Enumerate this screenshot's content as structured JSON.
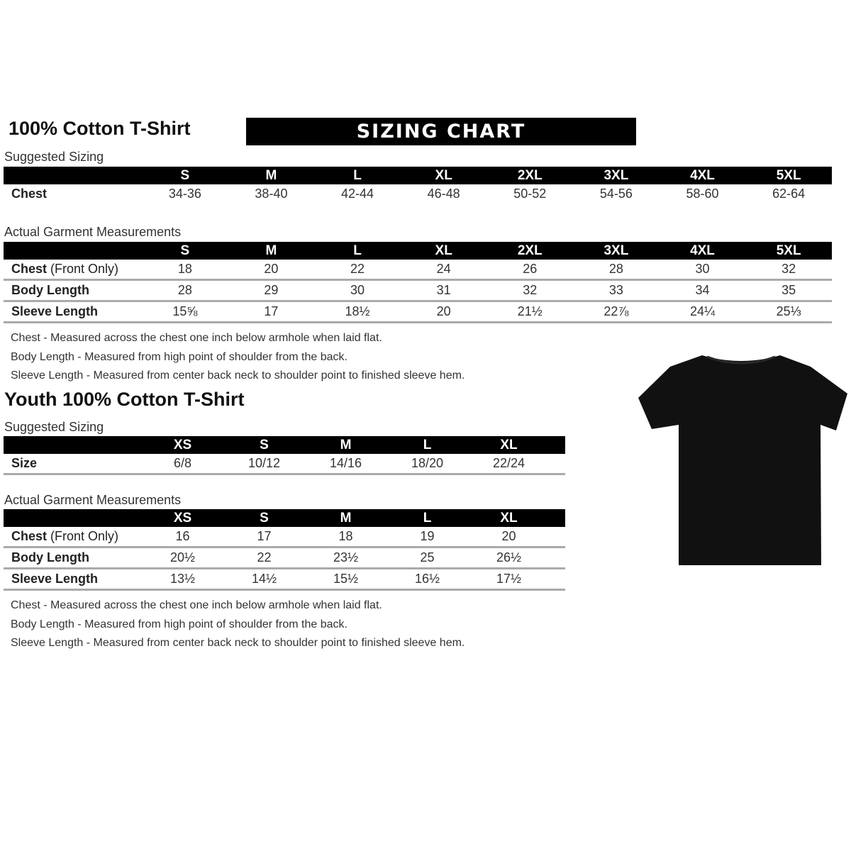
{
  "adult": {
    "title": "100% Cotton T-Shirt",
    "banner": "SIZING CHART",
    "suggested_label": "Suggested Sizing",
    "sizes": [
      "S",
      "M",
      "L",
      "XL",
      "2XL",
      "3XL",
      "4XL",
      "5XL"
    ],
    "chest_label": "Chest",
    "chest": [
      "34-36",
      "38-40",
      "42-44",
      "46-48",
      "50-52",
      "54-56",
      "58-60",
      "62-64"
    ],
    "actual_label": "Actual Garment Measurements",
    "rows": [
      {
        "label": "Chest",
        "label_suffix": " (Front Only)",
        "values": [
          "18",
          "20",
          "22",
          "24",
          "26",
          "28",
          "30",
          "32"
        ]
      },
      {
        "label": "Body Length",
        "label_suffix": "",
        "values": [
          "28",
          "29",
          "30",
          "31",
          "32",
          "33",
          "34",
          "35"
        ]
      },
      {
        "label": "Sleeve Length",
        "label_suffix": "",
        "values": [
          "15⅝",
          "17",
          "18½",
          "20",
          "21½",
          "22⅞",
          "24¼",
          "25⅓"
        ]
      }
    ],
    "notes": [
      "Chest - Measured across the chest one inch below armhole when laid flat.",
      "Body Length - Measured from high point of shoulder from the back.",
      "Sleeve Length - Measured from center back neck to shoulder point to finished sleeve hem."
    ]
  },
  "youth": {
    "title": "Youth 100% Cotton T-Shirt",
    "suggested_label": "Suggested Sizing",
    "sizes": [
      "XS",
      "S",
      "M",
      "L",
      "XL"
    ],
    "size_label": "Size",
    "size_values": [
      "6/8",
      "10/12",
      "14/16",
      "18/20",
      "22/24"
    ],
    "actual_label": "Actual Garment Measurements",
    "rows": [
      {
        "label": "Chest",
        "label_suffix": " (Front Only)",
        "values": [
          "16",
          "17",
          "18",
          "19",
          "20"
        ]
      },
      {
        "label": "Body Length",
        "label_suffix": "",
        "values": [
          "20½",
          "22",
          "23½",
          "25",
          "26½"
        ]
      },
      {
        "label": "Sleeve Length",
        "label_suffix": "",
        "values": [
          "13½",
          "14½",
          "15½",
          "16½",
          "17½"
        ]
      }
    ],
    "notes": [
      "Chest - Measured across the chest one inch below armhole when laid flat.",
      "Body Length - Measured from high point of shoulder from the back.",
      "Sleeve Length - Measured from center back neck to shoulder point to finished sleeve hem."
    ]
  },
  "tshirt_color": "#111111"
}
